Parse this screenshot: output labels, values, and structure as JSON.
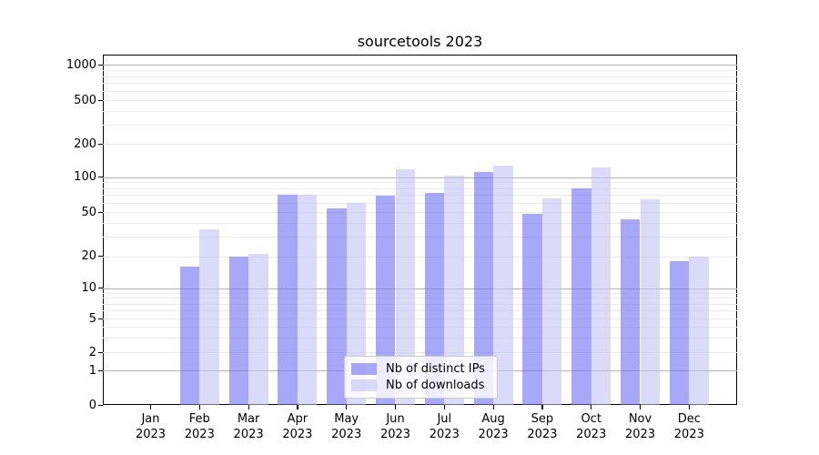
{
  "chart_data": {
    "type": "bar",
    "title": "sourcetools 2023",
    "categories": [
      "Jan 2023",
      "Feb 2023",
      "Mar 2023",
      "Apr 2023",
      "May 2023",
      "Jun 2023",
      "Jul 2023",
      "Aug 2023",
      "Sep 2023",
      "Oct 2023",
      "Nov 2023",
      "Dec 2023"
    ],
    "series": [
      {
        "name": "Nb of distinct IPs",
        "color": "rgba(110,110,245,0.60)",
        "values": [
          0,
          16,
          20,
          70,
          54,
          69,
          73,
          112,
          48,
          80,
          43,
          18
        ]
      },
      {
        "name": "Nb of downloads",
        "color": "rgba(190,190,245,0.57)",
        "values": [
          0,
          35,
          21,
          70,
          60,
          118,
          102,
          126,
          66,
          122,
          64,
          20
        ]
      }
    ],
    "xlabel": "",
    "ylabel": "",
    "yscale": "symlog",
    "ytick_values": [
      0,
      1,
      2,
      5,
      10,
      20,
      50,
      100,
      200,
      500,
      1000
    ],
    "ylim": [
      0,
      1200
    ],
    "grid": "both",
    "legend_position": "lower center"
  },
  "colors": {
    "grid_major": "#b3b3b3",
    "grid_minor": "#ebebeb",
    "spine": "#000000",
    "background": "#ffffff"
  }
}
